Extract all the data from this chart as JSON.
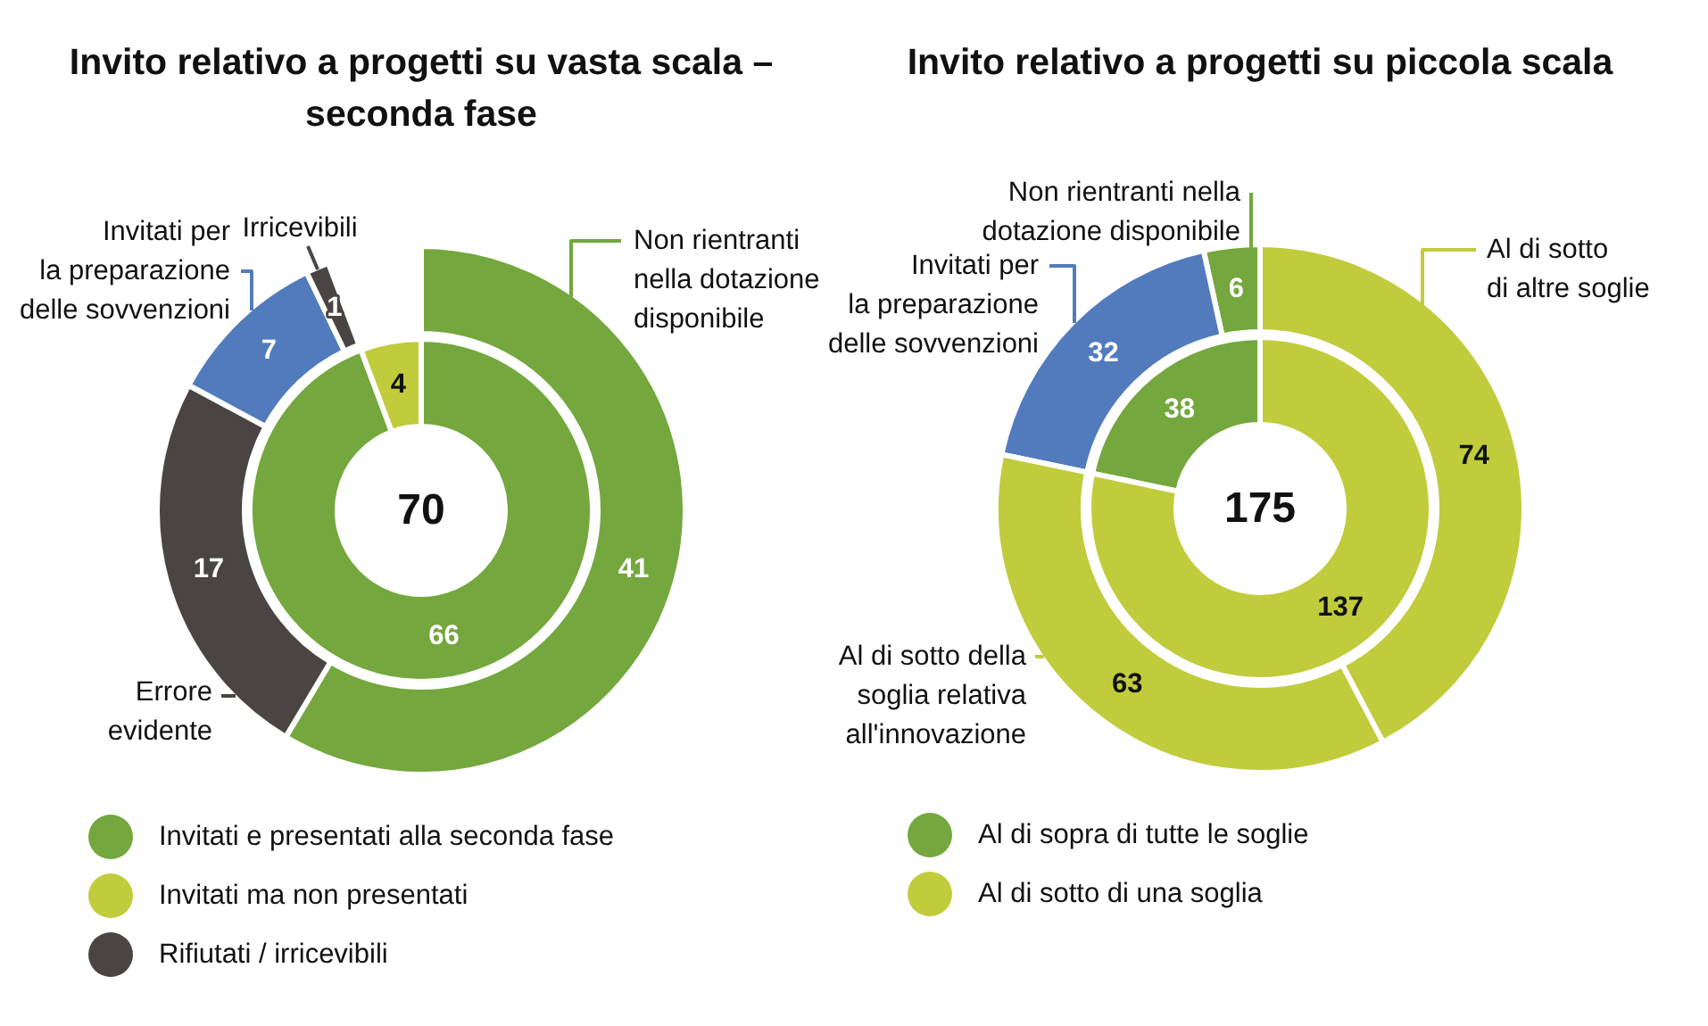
{
  "chart_data": [
    {
      "type": "donut",
      "title": "Invito relativo a progetti su vasta scala – seconda fase",
      "data_labels": true,
      "categories": [
        "Non rientranti nella dotazione disponibile",
        "Errore evidente",
        "Invitati per la preparazione delle sovvenzioni",
        "Irricevibili"
      ],
      "values": [
        41,
        17,
        7,
        1
      ],
      "colors": [
        "#74a73d",
        "#4a4542",
        "#527bbd",
        "#4a4542"
      ]
    },
    {
      "type": "donut",
      "legend": "bottom left",
      "data_labels": true,
      "annotations": [
        "70"
      ],
      "categories": [
        "Invitati e presentati alla seconda fase",
        "Invitati ma non presentati",
        "Rifiutati / irricevibili"
      ],
      "values": [
        66,
        4,
        null
      ],
      "colors": [
        "#74a73d",
        "#c0cc3c",
        "#4a4542"
      ]
    },
    {
      "type": "donut",
      "title": "Invito relativo a progetti su piccola scala",
      "data_labels": true,
      "categories": [
        "Non rientranti nella dotazione disponibile",
        "Invitati per la preparazione delle sovvenzioni",
        "Al di sotto della soglia relativa all'innovazione",
        "Al di sotto di altre soglie"
      ],
      "values": [
        6,
        32,
        63,
        74
      ],
      "colors": [
        "#74a73d",
        "#527bbd",
        "#c0cc3c",
        "#c0cc3c"
      ]
    },
    {
      "type": "donut",
      "legend": "bottom left",
      "data_labels": true,
      "annotations": [
        "175"
      ],
      "categories": [
        "Al di sopra di tutte le soglie",
        "Al di sotto di una soglia"
      ],
      "values": [
        38,
        137
      ],
      "colors": [
        "#74a73d",
        "#c0cc3c"
      ]
    }
  ]
}
